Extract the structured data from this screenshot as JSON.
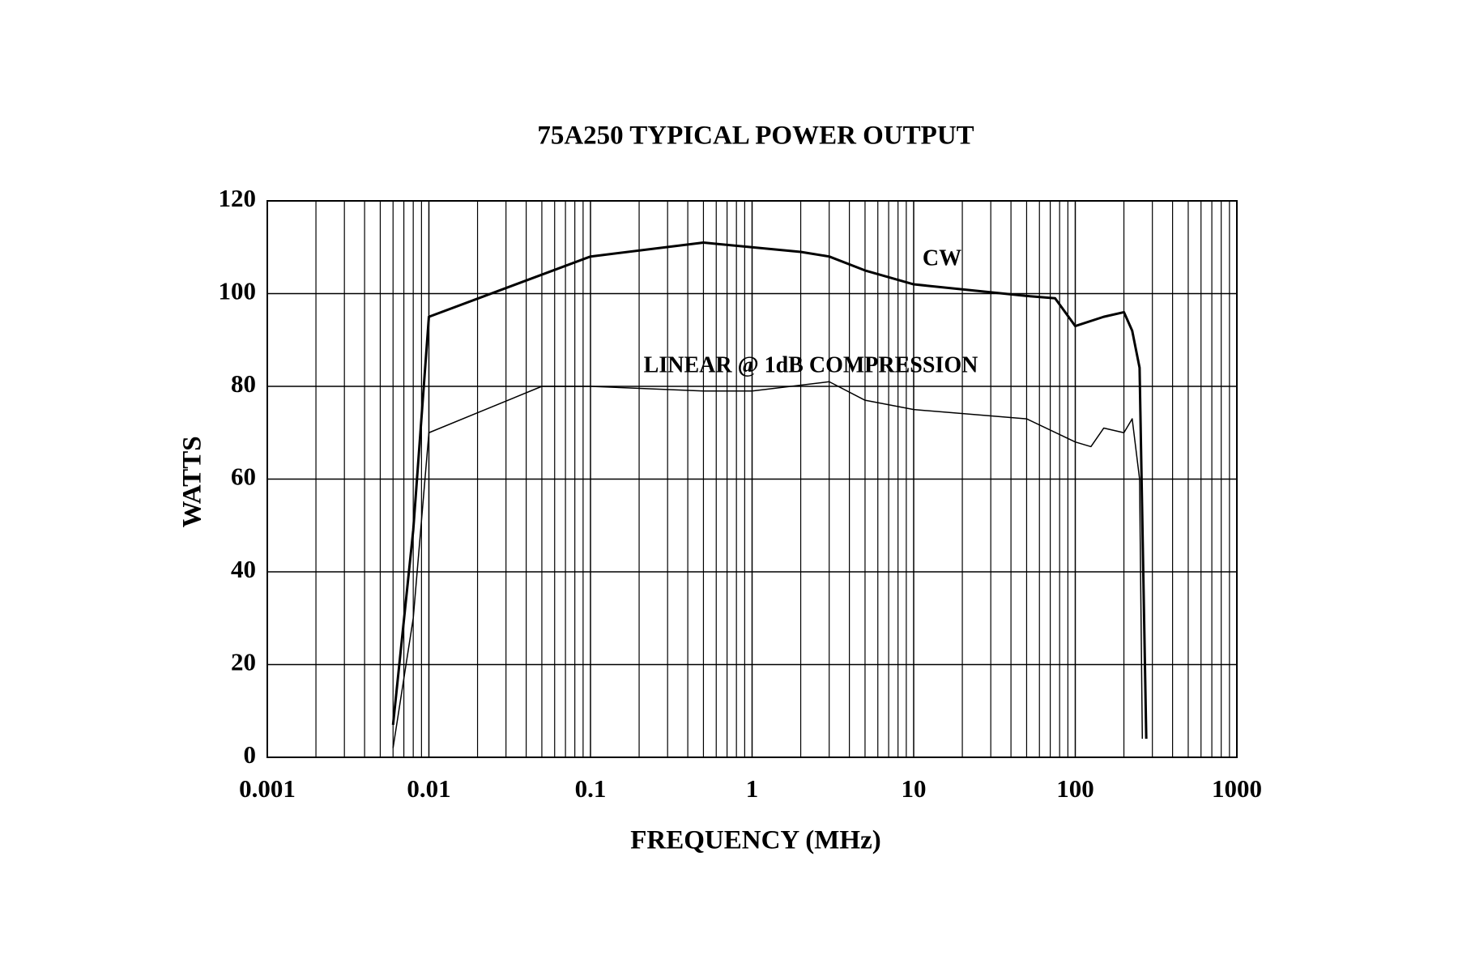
{
  "chart_data": {
    "type": "line",
    "title": "75A250 TYPICAL POWER OUTPUT",
    "x_label": "FREQUENCY (MHz)",
    "y_label": "WATTS",
    "x_scale": "log",
    "xlim": [
      0.001,
      1000
    ],
    "xticks": [
      0.001,
      0.01,
      0.1,
      1,
      10,
      100,
      1000
    ],
    "ylim": [
      0,
      120
    ],
    "yticks": [
      0,
      20,
      40,
      60,
      80,
      100,
      120
    ],
    "grid": true,
    "minor_grid": true,
    "series": [
      {
        "name": "CW",
        "color": "#000000",
        "line_width": 3,
        "x": [
          0.006,
          0.008,
          0.01,
          0.1,
          0.5,
          2,
          3,
          5,
          10,
          50,
          75,
          100,
          150,
          200,
          225,
          250,
          275
        ],
        "values": [
          7,
          49,
          95,
          108,
          111,
          109,
          108,
          105,
          102,
          99.5,
          99,
          93,
          95,
          96,
          92,
          84,
          4
        ]
      },
      {
        "name": "LINEAR @ 1dB COMPRESSION",
        "color": "#000000",
        "line_width": 1.5,
        "x": [
          0.006,
          0.008,
          0.01,
          0.05,
          0.1,
          0.5,
          1,
          3,
          5,
          10,
          50,
          100,
          125,
          150,
          200,
          225,
          250,
          260
        ],
        "values": [
          2,
          30,
          70,
          80,
          80,
          79,
          79,
          81,
          77,
          75,
          73,
          68,
          67,
          71,
          70,
          73,
          60,
          4
        ]
      }
    ]
  }
}
